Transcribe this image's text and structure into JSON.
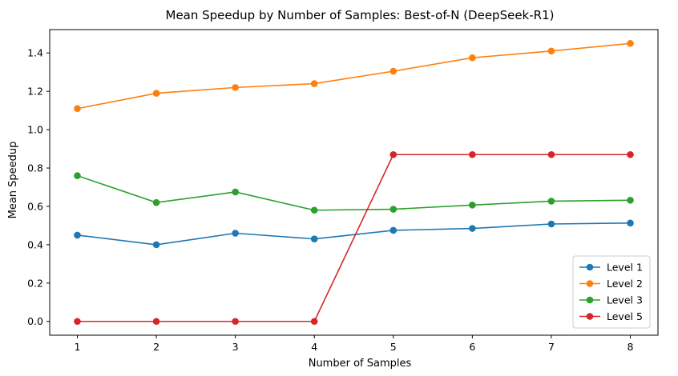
{
  "chart_data": {
    "type": "line",
    "title": "Mean Speedup by Number of Samples: Best-of-N (DeepSeek-R1)",
    "xlabel": "Number of Samples",
    "ylabel": "Mean Speedup",
    "x": [
      1,
      2,
      3,
      4,
      5,
      6,
      7,
      8
    ],
    "xticks": [
      "1",
      "2",
      "3",
      "4",
      "5",
      "6",
      "7",
      "8"
    ],
    "yticks": [
      "0.0",
      "0.2",
      "0.4",
      "0.6",
      "0.8",
      "1.0",
      "1.2",
      "1.4"
    ],
    "xlim": [
      0.65,
      8.35
    ],
    "ylim": [
      -0.072,
      1.522
    ],
    "grid": false,
    "legend_position": "lower-right",
    "series": [
      {
        "name": "Level 1",
        "color": "#1f77b4",
        "values": [
          0.45,
          0.4,
          0.46,
          0.43,
          0.475,
          0.485,
          0.508,
          0.513
        ]
      },
      {
        "name": "Level 2",
        "color": "#ff7f0e",
        "values": [
          1.11,
          1.19,
          1.22,
          1.24,
          1.305,
          1.375,
          1.41,
          1.45
        ]
      },
      {
        "name": "Level 3",
        "color": "#2ca02c",
        "values": [
          0.76,
          0.62,
          0.675,
          0.58,
          0.585,
          0.607,
          0.627,
          0.632
        ]
      },
      {
        "name": "Level 5",
        "color": "#d62728",
        "values": [
          0.0,
          0.0,
          0.0,
          0.0,
          0.87,
          0.87,
          0.87,
          0.87
        ]
      }
    ]
  }
}
